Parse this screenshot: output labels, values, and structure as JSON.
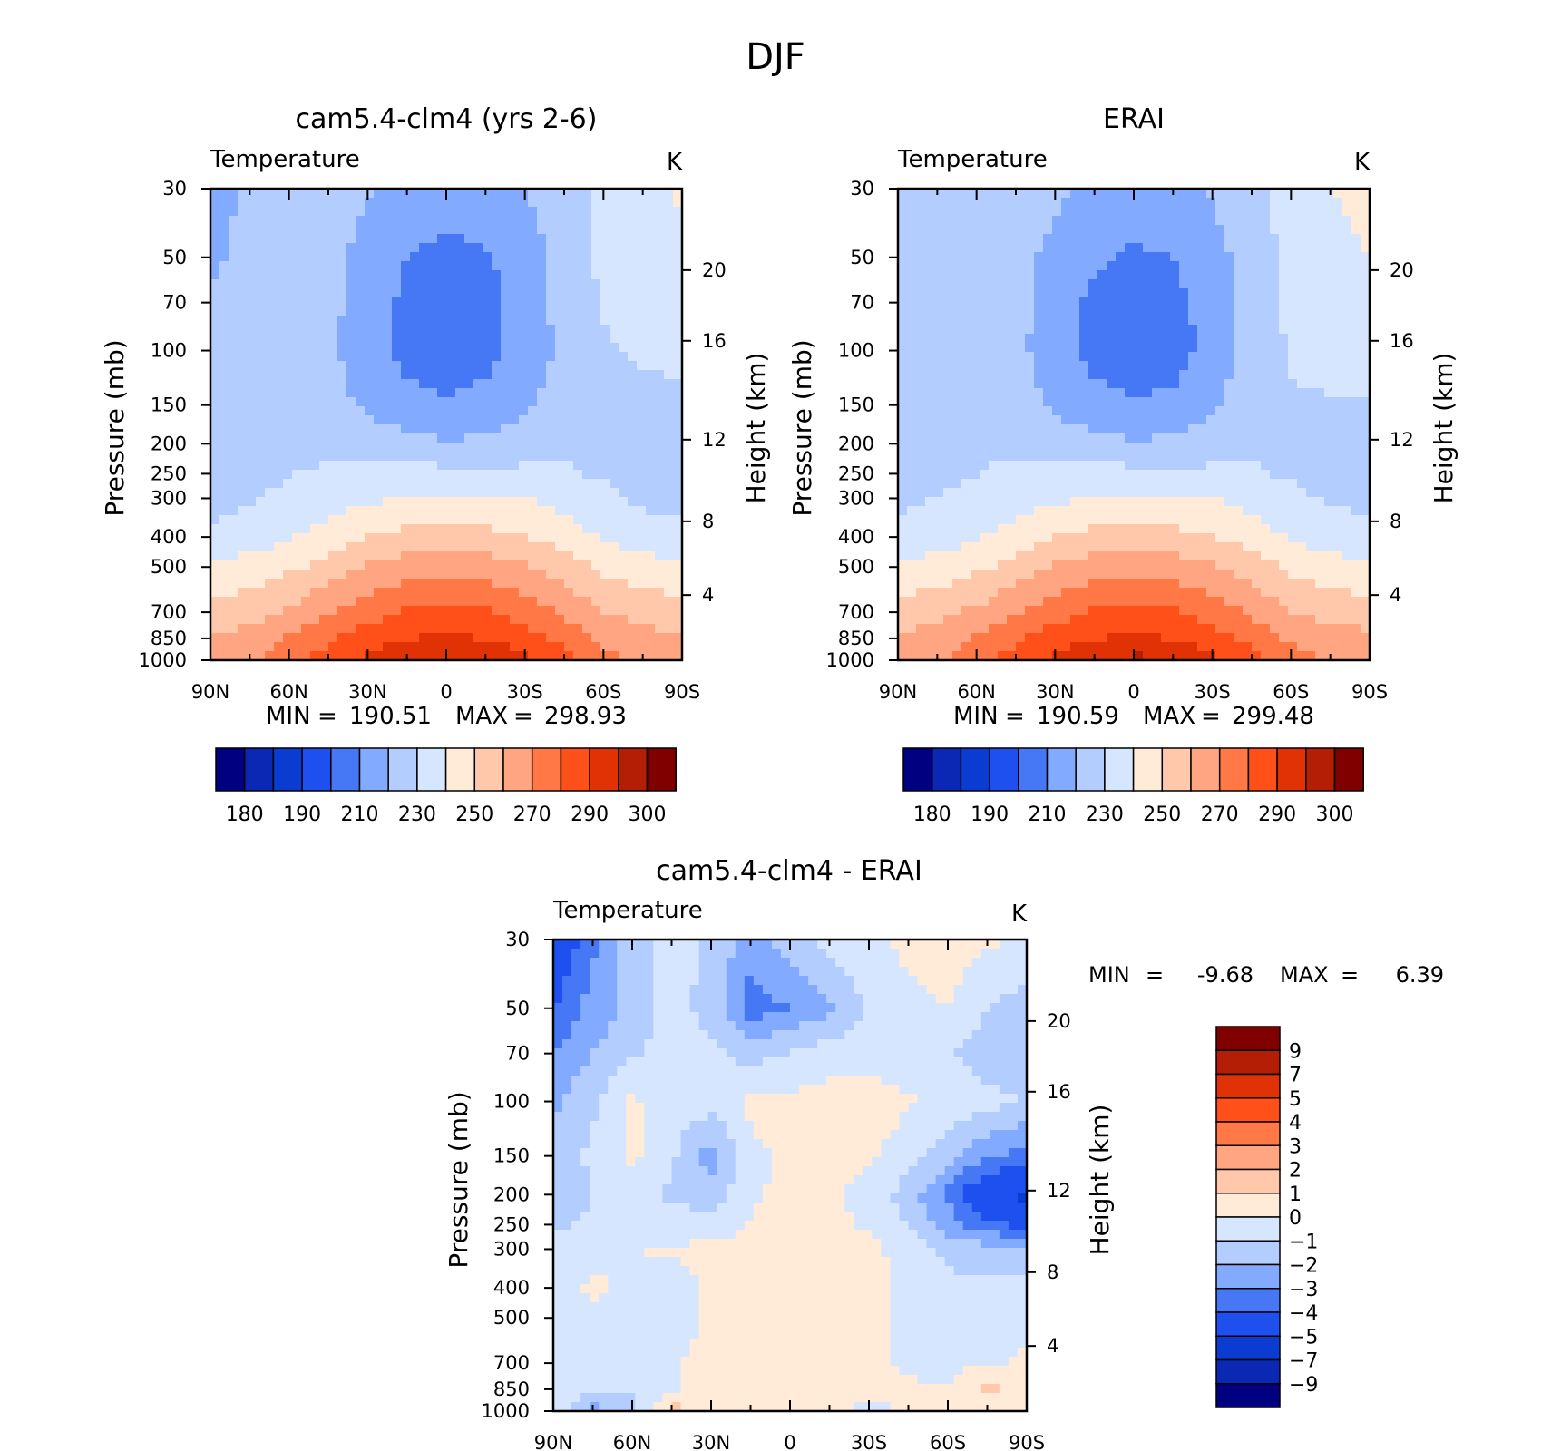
{
  "figure_title": "DJF",
  "palette": {
    "abs": [
      "#000080",
      "#0a28b4",
      "#0a3cd2",
      "#1e50f0",
      "#4678f5",
      "#82aaff",
      "#b4cdff",
      "#d7e6ff",
      "#ffebd7",
      "#ffc8aa",
      "#ffa582",
      "#ff7846",
      "#ff5019",
      "#e13205",
      "#b41e05",
      "#800000"
    ],
    "diff": [
      "#000080",
      "#0a28b4",
      "#0a3cd2",
      "#1e50f0",
      "#4678f5",
      "#82aaff",
      "#b4cdff",
      "#d7e6ff",
      "#ffebd7",
      "#ffc8aa",
      "#ffa582",
      "#ff7846",
      "#ff5019",
      "#e13205",
      "#b41e05",
      "#800000"
    ]
  },
  "chart_data": [
    {
      "type": "heatmap",
      "title": "cam5.4-clm4 (yrs 2-6)",
      "left_string": "Temperature",
      "right_string": "K",
      "ylabel": "Pressure (mb)",
      "y2label": "Height (km)",
      "x_ticklabels": [
        "90N",
        "60N",
        "30N",
        "0",
        "30S",
        "60S",
        "90S"
      ],
      "y_ticklabels": [
        "30",
        "50",
        "70",
        "100",
        "150",
        "200",
        "250",
        "300",
        "400",
        "500",
        "700",
        "850",
        "1000"
      ],
      "y2_ticklabels": [
        "20",
        "16",
        "12",
        "8",
        "4"
      ],
      "scale": "log pressure",
      "min_label": "MIN",
      "min_value": "190.51",
      "max_label": "MAX",
      "max_value": "298.93",
      "levels": [
        175,
        180,
        185,
        190,
        200,
        210,
        220,
        230,
        240,
        250,
        260,
        270,
        280,
        290,
        295,
        300
      ],
      "colorbar_labels": [
        "180",
        "190",
        "210",
        "230",
        "250",
        "270",
        "290",
        "300"
      ],
      "lat": [
        90,
        75,
        60,
        45,
        30,
        15,
        0,
        -15,
        -30,
        -45,
        -60,
        -75,
        -90
      ],
      "p": [
        30,
        50,
        70,
        100,
        150,
        200,
        250,
        300,
        400,
        500,
        700,
        850,
        1000
      ],
      "values": [
        [
          206,
          212,
          216,
          215,
          211,
          205,
          203,
          205,
          210,
          215,
          222,
          228,
          231
        ],
        [
          208,
          213,
          217,
          214,
          206,
          200,
          198,
          199,
          205,
          214,
          222,
          226,
          228
        ],
        [
          211,
          214,
          217,
          213,
          205,
          198,
          196,
          197,
          204,
          214,
          221,
          224,
          225
        ],
        [
          211,
          214,
          216,
          212,
          205,
          197,
          195,
          197,
          203,
          213,
          219,
          221,
          222
        ],
        [
          211,
          215,
          217,
          214,
          208,
          203,
          201,
          203,
          208,
          216,
          218,
          218,
          218
        ],
        [
          212,
          216,
          218,
          218,
          216,
          213,
          211,
          212,
          215,
          219,
          217,
          217,
          216
        ],
        [
          214,
          217,
          220,
          221,
          223,
          224,
          223,
          223,
          222,
          221,
          219,
          216,
          215
        ],
        [
          216,
          219,
          222,
          225,
          228,
          231,
          231,
          231,
          230,
          227,
          222,
          218,
          217
        ],
        [
          222,
          225,
          229,
          234,
          240,
          243,
          244,
          243,
          240,
          235,
          229,
          225,
          223
        ],
        [
          231,
          234,
          238,
          244,
          251,
          255,
          256,
          255,
          251,
          245,
          238,
          234,
          232
        ],
        [
          244,
          246,
          252,
          259,
          266,
          271,
          272,
          271,
          266,
          258,
          250,
          247,
          245
        ],
        [
          250,
          254,
          261,
          268,
          275,
          280,
          281,
          280,
          275,
          266,
          258,
          253,
          251
        ],
        [
          252,
          258,
          266,
          274,
          282,
          287,
          292,
          288,
          283,
          274,
          263,
          258,
          255
        ]
      ]
    },
    {
      "type": "heatmap",
      "title": "ERAI",
      "left_string": "Temperature",
      "right_string": "K",
      "ylabel": "Pressure (mb)",
      "y2label": "Height (km)",
      "x_ticklabels": [
        "90N",
        "60N",
        "30N",
        "0",
        "30S",
        "60S",
        "90S"
      ],
      "y_ticklabels": [
        "30",
        "50",
        "70",
        "100",
        "150",
        "200",
        "250",
        "300",
        "400",
        "500",
        "700",
        "850",
        "1000"
      ],
      "y2_ticklabels": [
        "20",
        "16",
        "12",
        "8",
        "4"
      ],
      "scale": "log pressure",
      "min_label": "MIN",
      "min_value": "190.59",
      "max_label": "MAX",
      "max_value": "299.48",
      "levels": [
        175,
        180,
        185,
        190,
        200,
        210,
        220,
        230,
        240,
        250,
        260,
        270,
        280,
        290,
        295,
        300
      ],
      "colorbar_labels": [
        "180",
        "190",
        "210",
        "230",
        "250",
        "270",
        "290",
        "300"
      ],
      "lat": [
        90,
        75,
        60,
        45,
        30,
        15,
        0,
        -15,
        -30,
        -45,
        -60,
        -75,
        -90
      ],
      "p": [
        30,
        50,
        70,
        100,
        150,
        200,
        250,
        300,
        400,
        500,
        700,
        850,
        1000
      ],
      "values": [
        [
          212,
          214,
          216,
          215,
          212,
          206,
          204,
          206,
          211,
          216,
          224,
          230,
          232
        ],
        [
          213,
          215,
          217,
          214,
          207,
          201,
          199,
          200,
          206,
          215,
          223,
          228,
          230
        ],
        [
          214,
          216,
          217,
          213,
          205,
          198,
          196,
          197,
          204,
          215,
          222,
          226,
          228
        ],
        [
          215,
          216,
          217,
          213,
          204,
          197,
          195,
          196,
          203,
          214,
          221,
          224,
          224
        ],
        [
          215,
          217,
          218,
          215,
          208,
          203,
          201,
          202,
          208,
          217,
          219,
          219,
          219
        ],
        [
          215,
          217,
          219,
          219,
          216,
          213,
          211,
          212,
          215,
          219,
          217,
          216,
          216
        ],
        [
          216,
          218,
          220,
          221,
          223,
          224,
          223,
          223,
          222,
          221,
          219,
          215,
          214
        ],
        [
          218,
          220,
          222,
          225,
          228,
          231,
          231,
          231,
          230,
          227,
          222,
          219,
          217
        ],
        [
          223,
          225,
          229,
          234,
          240,
          243,
          244,
          243,
          240,
          235,
          229,
          225,
          223
        ],
        [
          232,
          234,
          238,
          244,
          251,
          255,
          256,
          255,
          251,
          245,
          238,
          234,
          232
        ],
        [
          245,
          247,
          252,
          259,
          266,
          271,
          272,
          271,
          266,
          258,
          250,
          247,
          245
        ],
        [
          251,
          255,
          261,
          268,
          275,
          280,
          281,
          280,
          275,
          266,
          258,
          254,
          252
        ],
        [
          253,
          258,
          266,
          274,
          282,
          287,
          293,
          288,
          283,
          274,
          264,
          259,
          256
        ]
      ]
    },
    {
      "type": "heatmap",
      "title": "cam5.4-clm4 - ERAI",
      "left_string": "Temperature",
      "right_string": "K",
      "ylabel": "Pressure (mb)",
      "y2label": "Height (km)",
      "x_ticklabels": [
        "90N",
        "60N",
        "30N",
        "0",
        "30S",
        "60S",
        "90S"
      ],
      "y_ticklabels": [
        "30",
        "50",
        "70",
        "100",
        "150",
        "200",
        "250",
        "300",
        "400",
        "500",
        "700",
        "850",
        "1000"
      ],
      "y2_ticklabels": [
        "20",
        "16",
        "12",
        "8",
        "4"
      ],
      "scale": "log pressure",
      "min_label": "MIN",
      "min_value": "-9.68",
      "max_label": "MAX",
      "max_value": "6.39",
      "levels": [
        -11,
        -9,
        -7,
        -5,
        -4,
        -3,
        -2,
        -1,
        0,
        1,
        2,
        3,
        4,
        5,
        7,
        9
      ],
      "colorbar_labels": [
        "9",
        "7",
        "5",
        "4",
        "3",
        "2",
        "1",
        "0",
        "-1",
        "-2",
        "-3",
        "-4",
        "-5",
        "-7",
        "-9"
      ],
      "lat": [
        90,
        75,
        60,
        45,
        30,
        15,
        0,
        -15,
        -30,
        -45,
        -60,
        -75,
        -90
      ],
      "p": [
        30,
        50,
        70,
        100,
        150,
        200,
        250,
        300,
        400,
        500,
        700,
        850,
        1000
      ],
      "values": [
        [
          -6.5,
          -4.2,
          -2.5,
          -1.5,
          -2.2,
          -3.5,
          -2.5,
          -1.5,
          -1.2,
          -0.8,
          -0.5,
          -0.8,
          -1.2
        ],
        [
          -5.0,
          -3.6,
          -2.6,
          -1.6,
          -2.4,
          -4.5,
          -4.0,
          -3.2,
          -1.8,
          -1.2,
          -1.0,
          -2.0,
          -2.5
        ],
        [
          -4.0,
          -3.0,
          -2.2,
          -1.5,
          -1.8,
          -2.4,
          -2.0,
          -1.5,
          -1.3,
          -1.5,
          -1.8,
          -2.6,
          -2.8
        ],
        [
          -3.2,
          -2.2,
          -0.8,
          -1.6,
          -1.5,
          -0.8,
          -0.7,
          -0.5,
          -0.6,
          -0.9,
          -1.3,
          -1.7,
          -2.0
        ],
        [
          -2.4,
          -1.8,
          -0.8,
          -1.8,
          -3.5,
          -1.2,
          -0.8,
          -0.6,
          -0.8,
          -1.5,
          -2.6,
          -3.8,
          -4.5
        ],
        [
          -3.0,
          -2.0,
          -1.5,
          -2.2,
          -2.6,
          -1.2,
          -0.7,
          -0.8,
          -1.4,
          -2.5,
          -4.2,
          -6.5,
          -7.5
        ],
        [
          -2.2,
          -1.8,
          -1.4,
          -1.5,
          -1.5,
          -0.9,
          -0.6,
          -0.7,
          -1.2,
          -2.0,
          -3.5,
          -4.8,
          -5.2
        ],
        [
          -1.8,
          -1.4,
          -1.0,
          -0.9,
          -0.8,
          -0.6,
          -0.5,
          -0.5,
          -0.7,
          -1.5,
          -2.2,
          -2.5,
          -2.6
        ],
        [
          -1.5,
          -0.8,
          -1.2,
          -1.4,
          -0.9,
          -0.5,
          -0.4,
          -0.3,
          -0.5,
          -1.3,
          -1.8,
          -1.8,
          -1.6
        ],
        [
          -1.6,
          -1.3,
          -1.3,
          -1.5,
          -0.8,
          -0.5,
          -0.4,
          -0.4,
          -0.7,
          -1.4,
          -1.6,
          -1.3,
          -1.1
        ],
        [
          -1.7,
          -1.4,
          -1.3,
          -1.1,
          -0.7,
          -0.5,
          -0.4,
          -0.5,
          -0.7,
          -1.2,
          -1.4,
          -1.1,
          -0.9
        ],
        [
          -1.2,
          -1.6,
          -1.8,
          -1.2,
          -0.6,
          -0.5,
          -0.6,
          -0.6,
          -0.6,
          -0.8,
          -1.0,
          0.4,
          -0.5
        ],
        [
          -1.0,
          -3.5,
          -2.5,
          0.6,
          -0.6,
          -0.5,
          -0.5,
          -0.6,
          -1.3,
          -0.8,
          -0.6,
          -0.7,
          -0.6
        ]
      ]
    }
  ],
  "bottom_stats": {
    "min_label": "MIN",
    "min_value": "-9.68",
    "max_label": "MAX",
    "max_value": "6.39"
  }
}
